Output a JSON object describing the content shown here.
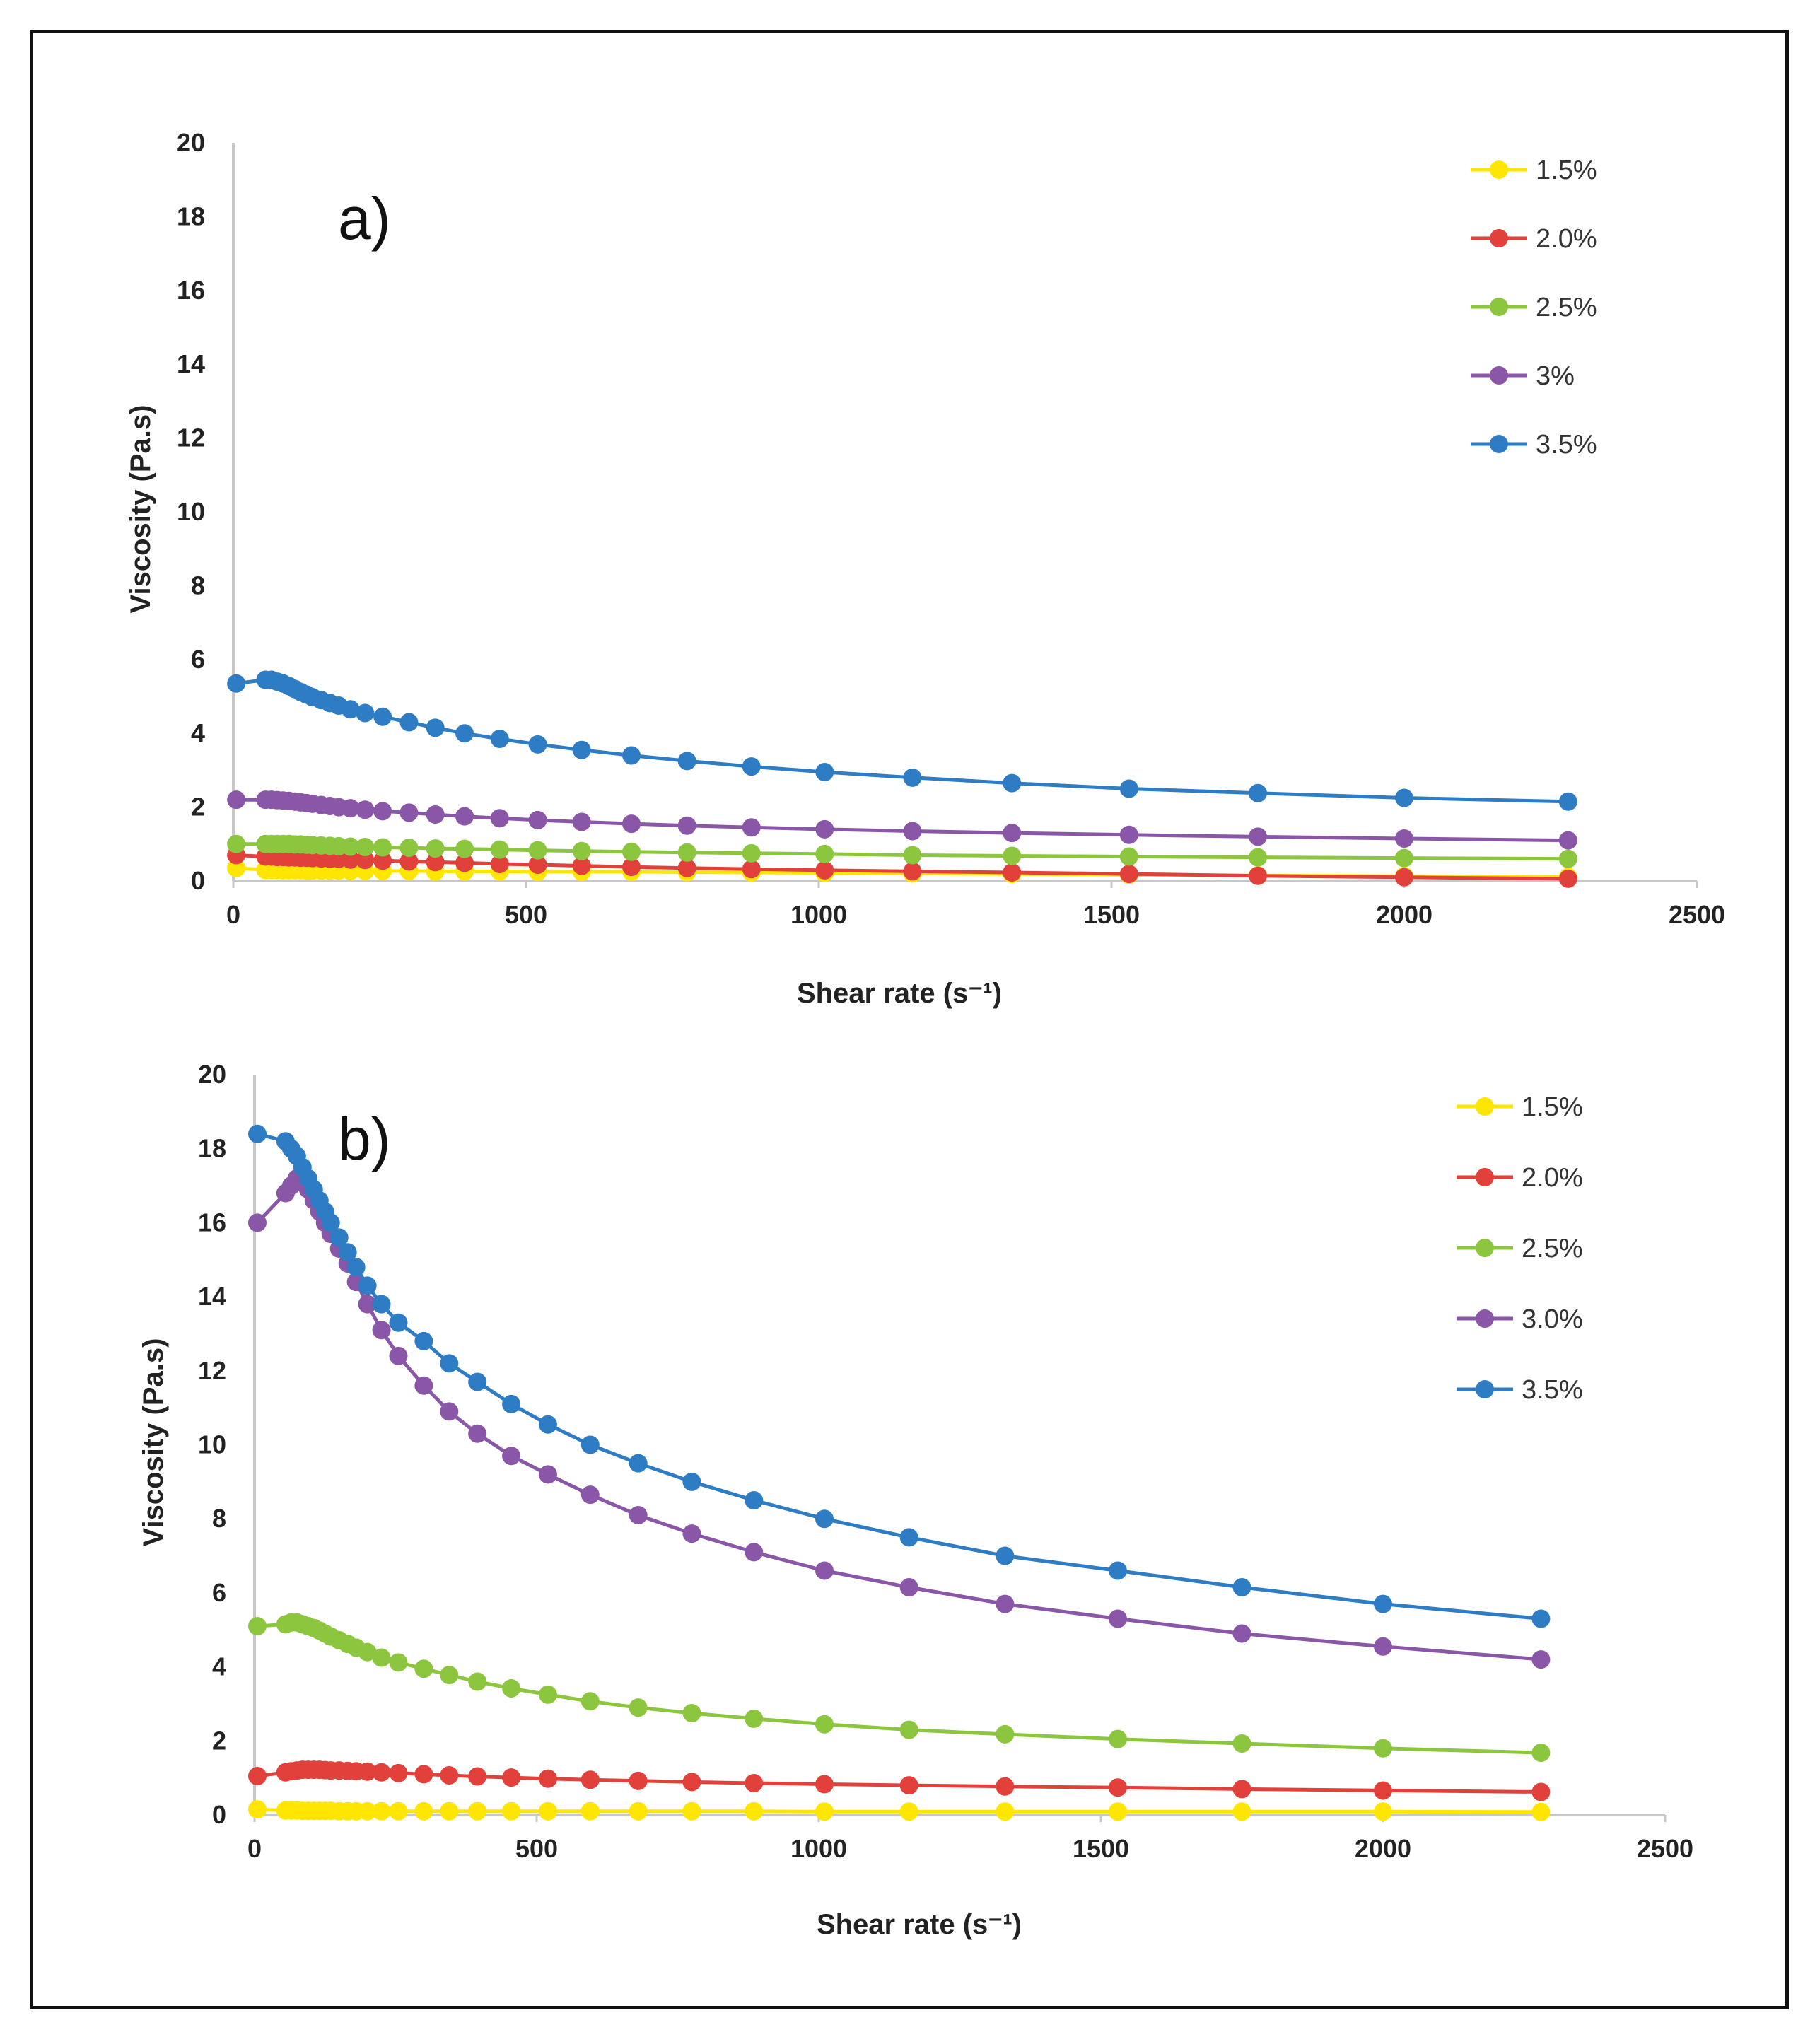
{
  "chart_data": [
    {
      "type": "line",
      "panel_label": "a)",
      "xlabel": "Shear rate (s⁻¹)",
      "ylabel": "Viscosity  (Pa.s)",
      "xlim": [
        0,
        2500
      ],
      "ylim": [
        0,
        20
      ],
      "xticks": [
        "0",
        "500",
        "1000",
        "1500",
        "2000",
        "2500"
      ],
      "yticks": [
        "0",
        "2",
        "4",
        "6",
        "8",
        "10",
        "12",
        "14",
        "16",
        "18",
        "20"
      ],
      "legend_position": "top-right",
      "x": [
        5,
        55,
        65,
        75,
        85,
        95,
        105,
        115,
        125,
        135,
        150,
        165,
        180,
        200,
        225,
        255,
        300,
        345,
        395,
        455,
        520,
        595,
        680,
        775,
        885,
        1010,
        1160,
        1330,
        1530,
        1750,
        2000,
        2280
      ],
      "series": [
        {
          "name": "1.5%",
          "color": "#ffe600",
          "values": [
            0.35,
            0.3,
            0.3,
            0.3,
            0.29,
            0.29,
            0.29,
            0.29,
            0.28,
            0.28,
            0.28,
            0.28,
            0.28,
            0.27,
            0.27,
            0.27,
            0.27,
            0.26,
            0.26,
            0.26,
            0.25,
            0.25,
            0.25,
            0.24,
            0.23,
            0.22,
            0.2,
            0.19,
            0.17,
            0.15,
            0.13,
            0.11
          ]
        },
        {
          "name": "2.0%",
          "color": "#e2403a",
          "values": [
            0.7,
            0.66,
            0.66,
            0.65,
            0.65,
            0.64,
            0.64,
            0.63,
            0.63,
            0.62,
            0.61,
            0.6,
            0.6,
            0.58,
            0.57,
            0.55,
            0.53,
            0.51,
            0.49,
            0.46,
            0.44,
            0.41,
            0.38,
            0.35,
            0.32,
            0.29,
            0.26,
            0.23,
            0.19,
            0.14,
            0.1,
            0.06
          ]
        },
        {
          "name": "2.5%",
          "color": "#8cc63f",
          "values": [
            1.0,
            1.0,
            1.0,
            1.0,
            1.0,
            1.0,
            0.99,
            0.99,
            0.98,
            0.97,
            0.96,
            0.95,
            0.94,
            0.93,
            0.92,
            0.91,
            0.9,
            0.88,
            0.87,
            0.85,
            0.83,
            0.81,
            0.79,
            0.77,
            0.75,
            0.73,
            0.7,
            0.68,
            0.66,
            0.64,
            0.62,
            0.6
          ]
        },
        {
          "name": "3%",
          "color": "#8a56a8",
          "values": [
            2.2,
            2.2,
            2.2,
            2.19,
            2.18,
            2.17,
            2.15,
            2.13,
            2.11,
            2.09,
            2.06,
            2.03,
            2.0,
            1.97,
            1.93,
            1.89,
            1.85,
            1.8,
            1.75,
            1.7,
            1.65,
            1.6,
            1.55,
            1.5,
            1.45,
            1.4,
            1.35,
            1.3,
            1.25,
            1.2,
            1.15,
            1.1
          ]
        },
        {
          "name": "3.5%",
          "color": "#2e7dc4",
          "values": [
            5.35,
            5.45,
            5.45,
            5.4,
            5.35,
            5.28,
            5.2,
            5.12,
            5.05,
            4.98,
            4.9,
            4.82,
            4.75,
            4.65,
            4.55,
            4.45,
            4.3,
            4.15,
            4.0,
            3.85,
            3.7,
            3.55,
            3.4,
            3.25,
            3.1,
            2.95,
            2.8,
            2.65,
            2.5,
            2.38,
            2.25,
            2.15
          ]
        }
      ]
    },
    {
      "type": "line",
      "panel_label": "b)",
      "xlabel": "Shear rate (s⁻¹)",
      "ylabel": "Viscosity (Pa.s)",
      "xlim": [
        0,
        2500
      ],
      "ylim": [
        0,
        20
      ],
      "xticks": [
        "0",
        "500",
        "1000",
        "1500",
        "2000",
        "2500"
      ],
      "yticks": [
        "0",
        "2",
        "4",
        "6",
        "8",
        "10",
        "12",
        "14",
        "16",
        "18",
        "20"
      ],
      "legend_position": "top-right",
      "x": [
        5,
        55,
        65,
        75,
        85,
        95,
        105,
        115,
        125,
        135,
        150,
        165,
        180,
        200,
        225,
        255,
        300,
        345,
        395,
        455,
        520,
        595,
        680,
        775,
        885,
        1010,
        1160,
        1330,
        1530,
        1750,
        2000,
        2280
      ],
      "series": [
        {
          "name": "1.5%",
          "color": "#ffe600",
          "values": [
            0.15,
            0.12,
            0.12,
            0.12,
            0.11,
            0.11,
            0.11,
            0.11,
            0.11,
            0.11,
            0.1,
            0.1,
            0.1,
            0.1,
            0.1,
            0.1,
            0.1,
            0.1,
            0.1,
            0.1,
            0.1,
            0.1,
            0.1,
            0.1,
            0.1,
            0.09,
            0.09,
            0.09,
            0.09,
            0.09,
            0.09,
            0.08
          ]
        },
        {
          "name": "2.0%",
          "color": "#e2403a",
          "values": [
            1.05,
            1.15,
            1.18,
            1.2,
            1.22,
            1.22,
            1.22,
            1.22,
            1.21,
            1.2,
            1.2,
            1.19,
            1.18,
            1.17,
            1.15,
            1.13,
            1.1,
            1.07,
            1.04,
            1.01,
            0.98,
            0.95,
            0.92,
            0.89,
            0.86,
            0.83,
            0.8,
            0.77,
            0.74,
            0.7,
            0.66,
            0.62
          ]
        },
        {
          "name": "2.5%",
          "color": "#8cc63f",
          "values": [
            5.1,
            5.15,
            5.2,
            5.2,
            5.15,
            5.1,
            5.05,
            4.98,
            4.9,
            4.82,
            4.72,
            4.62,
            4.52,
            4.4,
            4.25,
            4.12,
            3.95,
            3.78,
            3.6,
            3.42,
            3.25,
            3.07,
            2.9,
            2.75,
            2.6,
            2.45,
            2.3,
            2.18,
            2.05,
            1.93,
            1.8,
            1.68
          ]
        },
        {
          "name": "3.0%",
          "color": "#8a56a8",
          "values": [
            16.0,
            16.8,
            17.0,
            17.2,
            17.1,
            16.9,
            16.6,
            16.3,
            16.0,
            15.7,
            15.3,
            14.9,
            14.4,
            13.8,
            13.1,
            12.4,
            11.6,
            10.9,
            10.3,
            9.7,
            9.2,
            8.65,
            8.1,
            7.6,
            7.1,
            6.6,
            6.15,
            5.7,
            5.3,
            4.9,
            4.55,
            4.2
          ]
        },
        {
          "name": "3.5%",
          "color": "#2e7dc4",
          "values": [
            18.4,
            18.2,
            18.0,
            17.8,
            17.5,
            17.2,
            16.9,
            16.6,
            16.3,
            16.0,
            15.6,
            15.2,
            14.8,
            14.3,
            13.8,
            13.3,
            12.8,
            12.2,
            11.7,
            11.1,
            10.55,
            10.0,
            9.5,
            9.0,
            8.5,
            8.0,
            7.5,
            7.0,
            6.6,
            6.15,
            5.7,
            5.3
          ]
        }
      ]
    }
  ]
}
